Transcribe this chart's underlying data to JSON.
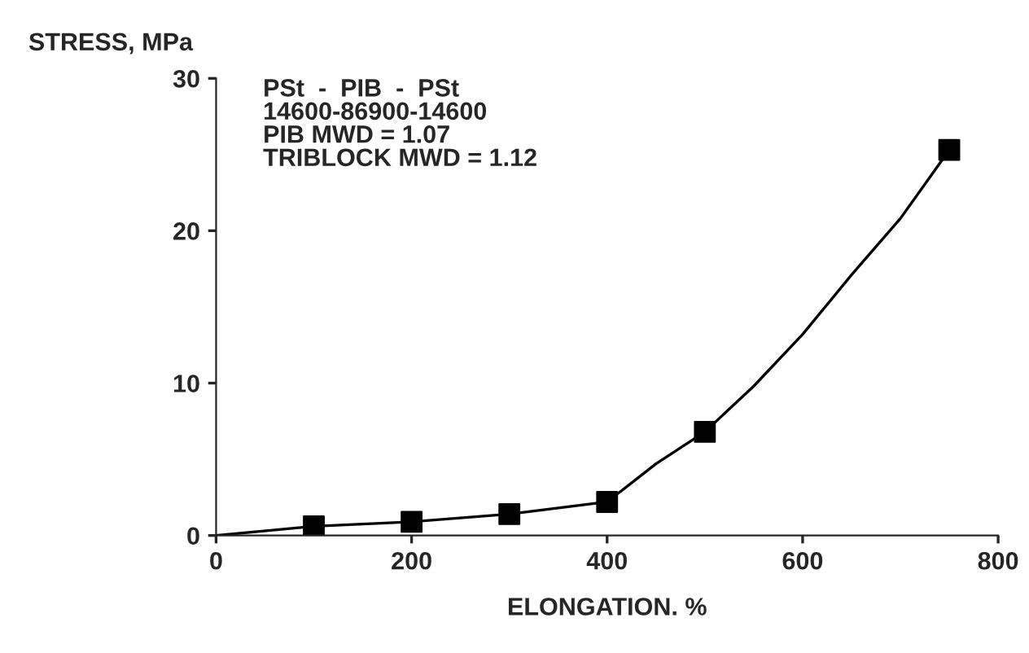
{
  "chart_data": {
    "type": "scatter",
    "xlabel": "ELONGATION. %",
    "ylabel": "STRESS, MPa",
    "annotations": [
      "PSt  -  PIB  -  PSt\n14600-86900-14600\nPIB MWD = 1.07\nTRIBLOCK MWD = 1.12"
    ],
    "x": [
      100,
      200,
      300,
      400,
      500,
      750
    ],
    "series": [
      {
        "type": "line",
        "color": "#000000",
        "marker": "none",
        "x": [
          0,
          100,
          200,
          300,
          400,
          450,
          500,
          550,
          600,
          650,
          700,
          750
        ],
        "values": [
          0,
          0.6,
          0.9,
          1.4,
          2.2,
          4.7,
          6.8,
          9.8,
          13.2,
          17.1,
          20.8,
          25.3
        ]
      },
      {
        "color": "#000000",
        "marker": "square",
        "values": [
          0.6,
          0.9,
          1.4,
          2.2,
          6.8,
          25.3
        ]
      }
    ],
    "xlim": [
      0,
      800
    ],
    "ylim": [
      0,
      30
    ],
    "xticks": [
      0,
      200,
      400,
      600,
      800
    ],
    "yticks": [
      0,
      10,
      20,
      30
    ],
    "grid": false,
    "legend": false
  }
}
